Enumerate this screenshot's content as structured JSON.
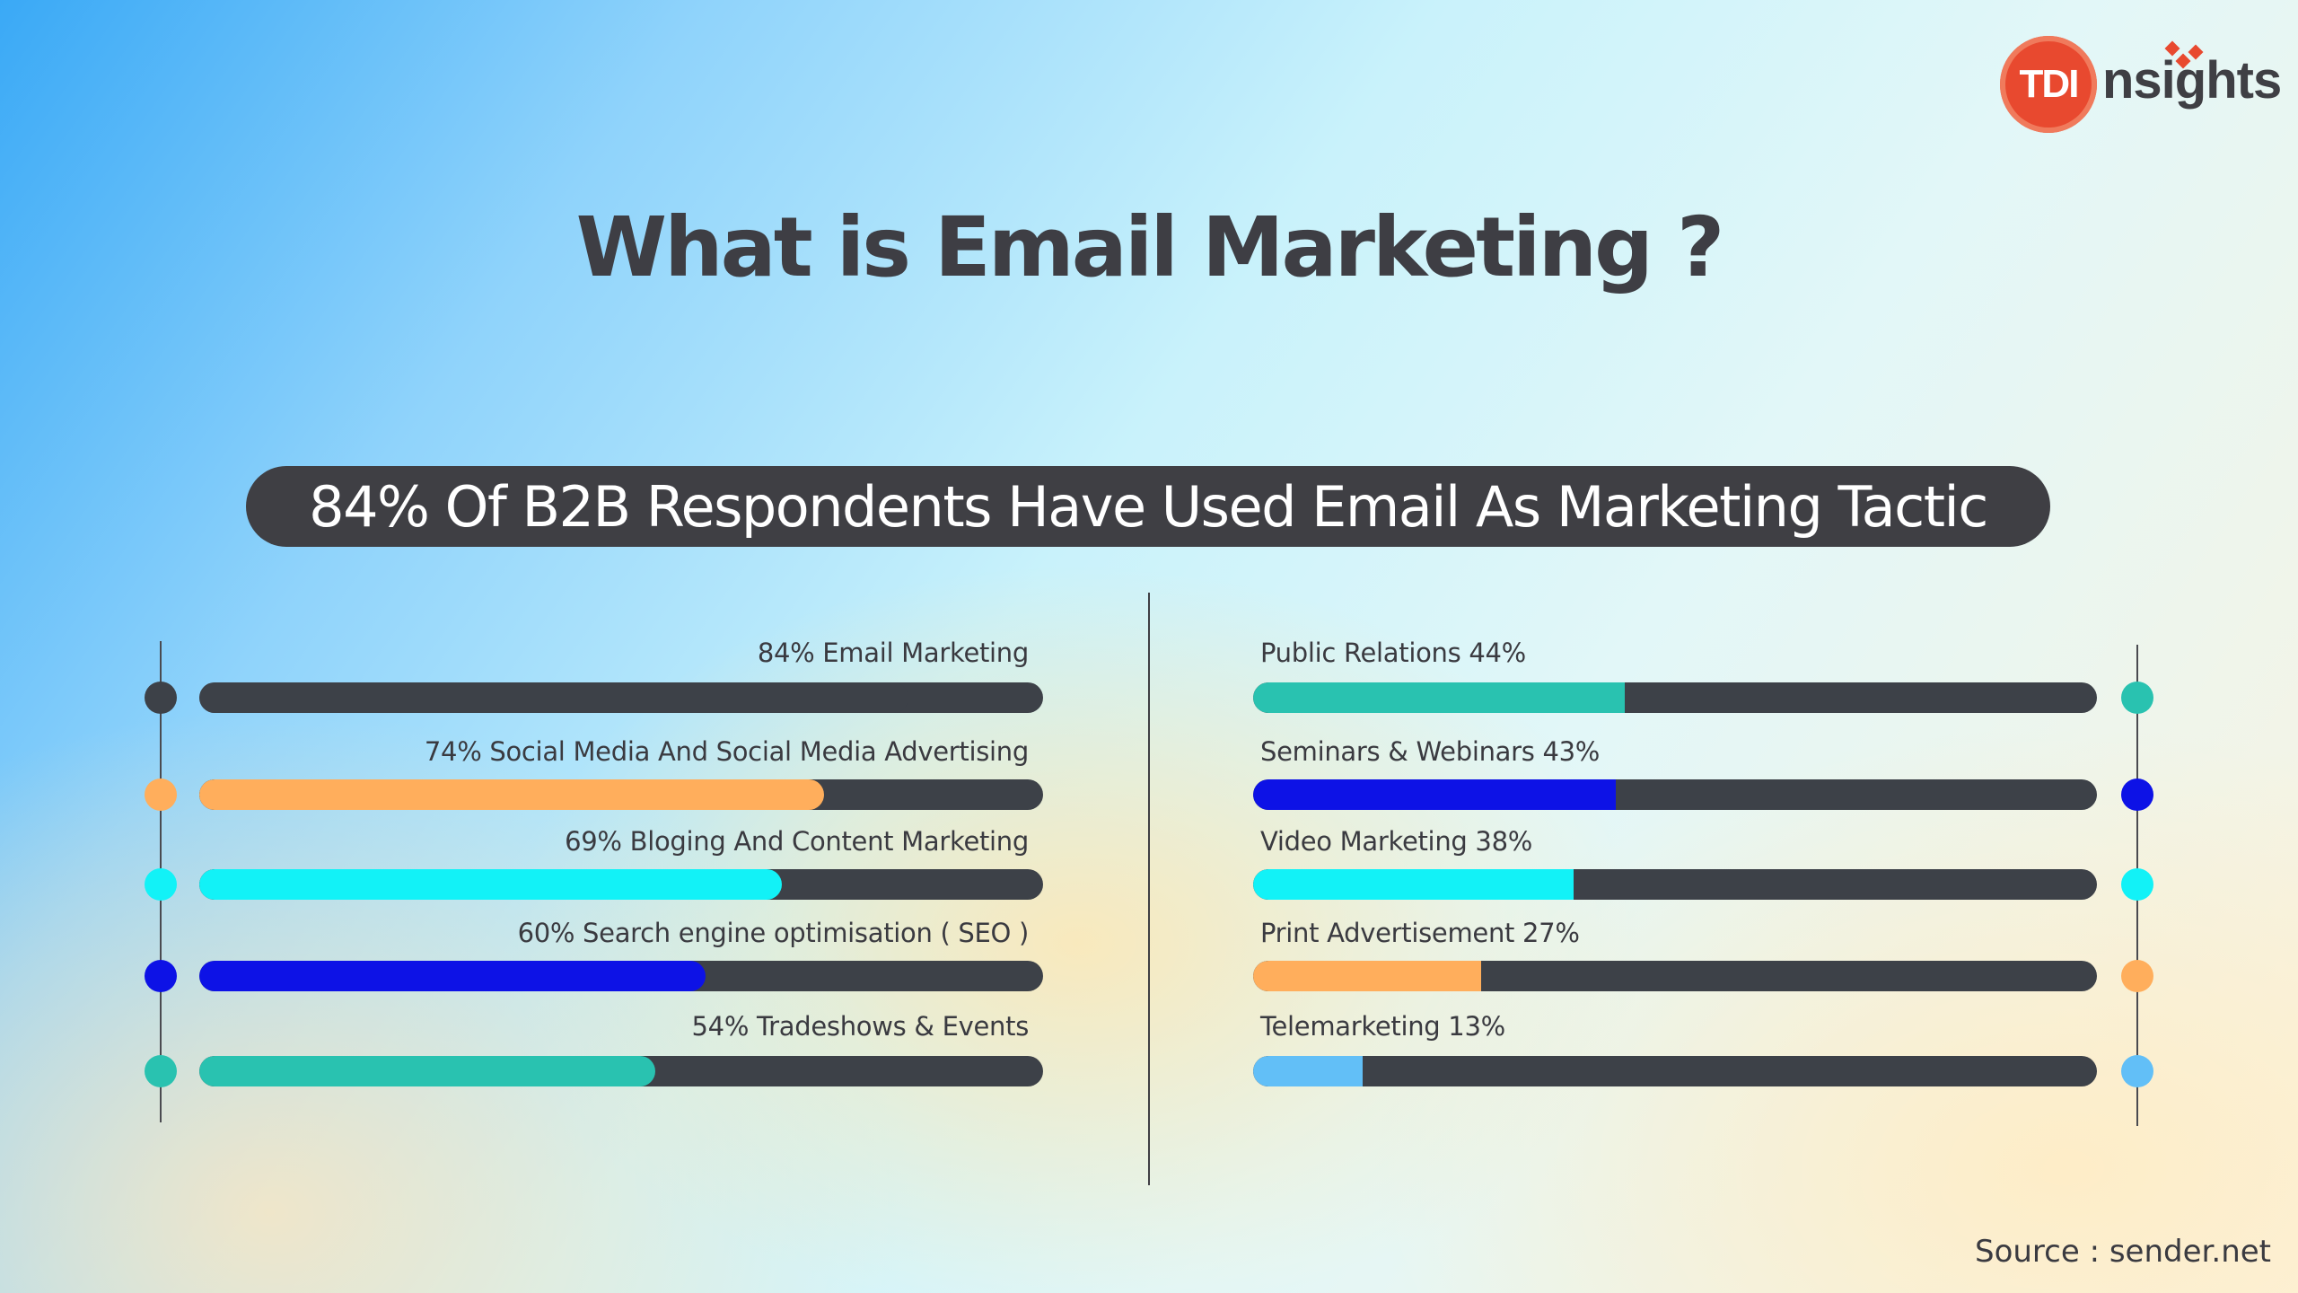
{
  "logo": {
    "badge": "TDI",
    "text": "nsights"
  },
  "title": "What is Email Marketing ?",
  "subtitle": "84% Of B2B Respondents Have Used Email As Marketing Tactic",
  "source": "Source : sender.net",
  "colors": {
    "track": "#3d4148",
    "dark": "#3d4148",
    "orange": "#ffae5c",
    "cyan": "#12f2f7",
    "blue": "#0d12e6",
    "teal": "#29c2b0",
    "lightblue": "#62bff7"
  },
  "chart_data": {
    "type": "bar",
    "orientation": "horizontal",
    "title": "84% Of B2B Respondents Have Used Email As Marketing Tactic",
    "value_unit": "%",
    "xlim": [
      0,
      100
    ],
    "left_group": [
      {
        "label": "84% Email Marketing",
        "category": "Email Marketing",
        "value": 84,
        "color": "#3d4148"
      },
      {
        "label": "74% Social Media And Social Media Advertising",
        "category": "Social Media And Social Media Advertising",
        "value": 74,
        "color": "#ffae5c"
      },
      {
        "label": "69% Bloging And Content Marketing",
        "category": "Bloging And Content Marketing",
        "value": 69,
        "color": "#12f2f7"
      },
      {
        "label": "60% Search engine optimisation ( SEO )",
        "category": "Search engine optimisation ( SEO )",
        "value": 60,
        "color": "#0d12e6"
      },
      {
        "label": "54% Tradeshows & Events",
        "category": "Tradeshows & Events",
        "value": 54,
        "color": "#29c2b0"
      }
    ],
    "right_group": [
      {
        "label": "Public Relations 44%",
        "category": "Public Relations",
        "value": 44,
        "color": "#29c2b0"
      },
      {
        "label": "Seminars & Webinars 43%",
        "category": "Seminars & Webinars",
        "value": 43,
        "color": "#0d12e6"
      },
      {
        "label": "Video Marketing 38%",
        "category": "Video Marketing",
        "value": 38,
        "color": "#12f2f7"
      },
      {
        "label": "Print Advertisement 27%",
        "category": "Print Advertisement",
        "value": 27,
        "color": "#ffae5c"
      },
      {
        "label": "Telemarketing 13%",
        "category": "Telemarketing",
        "value": 13,
        "color": "#62bff7"
      }
    ]
  }
}
